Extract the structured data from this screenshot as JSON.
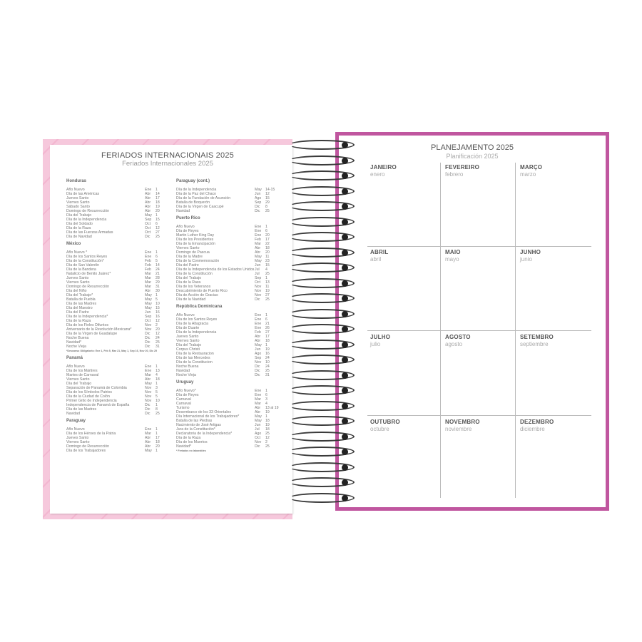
{
  "left_page": {
    "title": "FERIADOS INTERNACIONAIS 2025",
    "subtitle": "Feriados Internacionales 2025",
    "columns": [
      [
        {
          "country": "Honduras",
          "items": [
            [
              "Año Nuevo",
              "Ene",
              "1"
            ],
            [
              "Día de las Américas",
              "Abr",
              "14"
            ],
            [
              "Jueves Santo",
              "Abr",
              "17"
            ],
            [
              "Viernes Santo",
              "Abr",
              "18"
            ],
            [
              "Sábado Santo",
              "Abr",
              "19"
            ],
            [
              "Domingo de Resurrección",
              "Abr",
              "20"
            ],
            [
              "Día del Trabajo",
              "May",
              "1"
            ],
            [
              "Día de la Independencia",
              "Sep",
              "15"
            ],
            [
              "Día del Soldado",
              "Oct",
              "6"
            ],
            [
              "Día de la Raza",
              "Oct",
              "12"
            ],
            [
              "Día de las Fuerzas Armadas",
              "Oct",
              "27"
            ],
            [
              "Día de Navidad",
              "Dic",
              "25"
            ]
          ]
        },
        {
          "country": "México",
          "items": [
            [
              "Año Nuevo *",
              "Ene",
              "1"
            ],
            [
              "Día de los Santos Reyes",
              "Ene",
              "6"
            ],
            [
              "Día de la Constitución*",
              "Feb",
              "5"
            ],
            [
              "Día de San Valentín",
              "Feb",
              "14"
            ],
            [
              "Día de la Bandera",
              "Feb",
              "24"
            ],
            [
              "Natalicio de Benito Juárez*",
              "Mar",
              "21"
            ],
            [
              "Jueves Santo",
              "Mar",
              "28"
            ],
            [
              "Viernes Santo",
              "Mar",
              "29"
            ],
            [
              "Domingo de Resurrección",
              "Mar",
              "31"
            ],
            [
              "Día del Niño",
              "Abr",
              "30"
            ],
            [
              "Día del Trabajo*",
              "May",
              "1"
            ],
            [
              "Batalla de Puebla",
              "May",
              "5"
            ],
            [
              "Día de las Madres",
              "May",
              "10"
            ],
            [
              "Día del Maestro",
              "May",
              "15"
            ],
            [
              "Día del Padre",
              "Jun",
              "16"
            ],
            [
              "Día de la Independencia*",
              "Sep",
              "16"
            ],
            [
              "Día de la Raza",
              "Oct",
              "12"
            ],
            [
              "Día de los Fieles Difuntos",
              "Nov",
              "2"
            ],
            [
              "Aniversario de la Revolución Mexicana*",
              "Nov",
              "20"
            ],
            [
              "Día de la Virgen de Guadalupe",
              "Dic",
              "12"
            ],
            [
              "Noche Buena",
              "Dic",
              "24"
            ],
            [
              "Navidad*",
              "Dic",
              "25"
            ],
            [
              "Noche Vieja",
              "Dic",
              "31"
            ]
          ],
          "note": "*Descanso Obligatorio: Ene 1, Feb 5, Mar 21, May 1, Sep 16, Nov 20, Dic 25"
        },
        {
          "country": "Panamá",
          "items": [
            [
              "Año Nuevo",
              "Ene",
              "1"
            ],
            [
              "Día de los Mártires",
              "Ene",
              "13"
            ],
            [
              "Martes de Carnaval",
              "Mar",
              "4"
            ],
            [
              "Viernes Santo",
              "Abr",
              "18"
            ],
            [
              "Día del Trabajo",
              "May",
              "1"
            ],
            [
              "Separación de Panamá de Colombia",
              "Nov",
              "3"
            ],
            [
              "Día de los Símbolos Patrios",
              "Nov",
              "5"
            ],
            [
              "Día de la Ciudad de Colón",
              "Nov",
              "5"
            ],
            [
              "Primer Grito de Independencia",
              "Nov",
              "10"
            ],
            [
              "Independencia de Panamá de España",
              "Dic",
              "1"
            ],
            [
              "Día de las Madres",
              "Dic",
              "8"
            ],
            [
              "Navidad",
              "Dic",
              "25"
            ]
          ]
        },
        {
          "country": "Paraguay",
          "items": [
            [
              "Año Nuevo",
              "Ene",
              "1"
            ],
            [
              "Día de los Héroes de la Patria",
              "Mar",
              "1"
            ],
            [
              "Jueves Santo",
              "Abr",
              "17"
            ],
            [
              "Viernes Santo",
              "Abr",
              "18"
            ],
            [
              "Domingo de Resurrección",
              "Abr",
              "20"
            ],
            [
              "Día de los Trabajadores",
              "May",
              "1"
            ]
          ]
        }
      ],
      [
        {
          "country": "Paraguay (cont.)",
          "items": [
            [
              "Día de la Independencia",
              "May",
              "14-15"
            ],
            [
              "Día de la Paz del Chaco",
              "Jun",
              "12"
            ],
            [
              "Día de la Fundación de Asunción",
              "Ago",
              "15"
            ],
            [
              "Batalla de Boquerón",
              "Sep",
              "29"
            ],
            [
              "Día de la Virgen de Caacupé",
              "Dic",
              "8"
            ],
            [
              "Navidad",
              "Dic",
              "25"
            ]
          ]
        },
        {
          "country": "Puerto Rico",
          "items": [
            [
              "Año Nuevo",
              "Ene",
              "1"
            ],
            [
              "Día de Reyes",
              "Ene",
              "6"
            ],
            [
              "Martin Luther King Day",
              "Ene",
              "20"
            ],
            [
              "Día de los Presidentes",
              "Feb",
              "17"
            ],
            [
              "Día de la Emancipación",
              "Mar",
              "22"
            ],
            [
              "Viernes Santo",
              "Abr",
              "18"
            ],
            [
              "Domingo de Pascua",
              "Abr",
              "20"
            ],
            [
              "Día de la Madre",
              "May",
              "11"
            ],
            [
              "Día de la Conmemoración",
              "May",
              "23"
            ],
            [
              "Día del Padre",
              "Jun",
              "15"
            ],
            [
              "Día de la Independencia de los Estados Unidos",
              "Jul",
              "4"
            ],
            [
              "Día de la Constitución",
              "Jul",
              "25"
            ],
            [
              "Día del Trabajo",
              "Sep",
              "1"
            ],
            [
              "Día de la Raza",
              "Oct",
              "13"
            ],
            [
              "Día de los Veteranos",
              "Nov",
              "11"
            ],
            [
              "Descubrimiento de Puerto Rico",
              "Nov",
              "19"
            ],
            [
              "Día de Acción de Gracias",
              "Nov",
              "27"
            ],
            [
              "Día de la Navidad",
              "Dic",
              "25"
            ]
          ]
        },
        {
          "country": "República Dominicana",
          "items": [
            [
              "Año Nuevo",
              "Ene",
              "1"
            ],
            [
              "Día de los Santos Reyes",
              "Ene",
              "6"
            ],
            [
              "Día de la Altagracia",
              "Ene",
              "21"
            ],
            [
              "Día de Duarte",
              "Ene",
              "26"
            ],
            [
              "Día de la Independencia",
              "Feb",
              "27"
            ],
            [
              "Jueves Santo",
              "Abr",
              "17"
            ],
            [
              "Viernes Santo",
              "Abr",
              "18"
            ],
            [
              "Día del Trabajo",
              "May",
              "1"
            ],
            [
              "Corpus Christi",
              "Jun",
              "19"
            ],
            [
              "Día de la Restauracion",
              "Ago",
              "16"
            ],
            [
              "Día de las Mercedes",
              "Sep",
              "24"
            ],
            [
              "Día de la Constitucion",
              "Nov",
              "10"
            ],
            [
              "Noche Buena",
              "Dic",
              "24"
            ],
            [
              "Navidad",
              "Dic",
              "25"
            ],
            [
              "Noche Vieja",
              "Dic",
              "31"
            ]
          ]
        },
        {
          "country": "Uruguay",
          "items": [
            [
              "Año Nuevo*",
              "Ene",
              "1"
            ],
            [
              "Día de Reyes",
              "Ene",
              "6"
            ],
            [
              "Carnaval",
              "Mar",
              "3"
            ],
            [
              "Carnaval",
              "Mar",
              "4"
            ],
            [
              "Turismo",
              "Abr",
              "13 al 19"
            ],
            [
              "Desembarco de los 33 Orientales",
              "Abr",
              "19"
            ],
            [
              "Día Internacional de los Trabajadores*",
              "May",
              "1"
            ],
            [
              "Batalla de las Piedras",
              "May",
              "18"
            ],
            [
              "Nacimiento de José Artigas",
              "Jun",
              "19"
            ],
            [
              "Jura de la Constitución*",
              "Jul",
              "18"
            ],
            [
              "Declaratoria de la Independencia*",
              "Ago",
              "25"
            ],
            [
              "Día de la Raza",
              "Oct",
              "12"
            ],
            [
              "Día de los Muertos",
              "Nov",
              "2"
            ],
            [
              "Navidad*",
              "Dic",
              "25"
            ]
          ],
          "note": "* Feriados no laborables"
        }
      ]
    ]
  },
  "right_page": {
    "title": "PLANEJAMENTO 2025",
    "subtitle": "Planificación 2025",
    "months": [
      [
        "JANEIRO",
        "enero"
      ],
      [
        "FEVEREIRO",
        "febrero"
      ],
      [
        "MARÇO",
        "marzo"
      ],
      [
        "ABRIL",
        "abril"
      ],
      [
        "MAIO",
        "mayo"
      ],
      [
        "JUNHO",
        "junio"
      ],
      [
        "JULHO",
        "julio"
      ],
      [
        "AGOSTO",
        "agosto"
      ],
      [
        "SETEMBRO",
        "septiembre"
      ],
      [
        "OUTUBRO",
        "octubre"
      ],
      [
        "NOVEMBRO",
        "noviembre"
      ],
      [
        "DEZEMBRO",
        "diciembre"
      ]
    ]
  },
  "colors": {
    "cover_pink": "#f6c8dc",
    "right_border": "#c0569f",
    "spiral": "#3a3a3a"
  }
}
